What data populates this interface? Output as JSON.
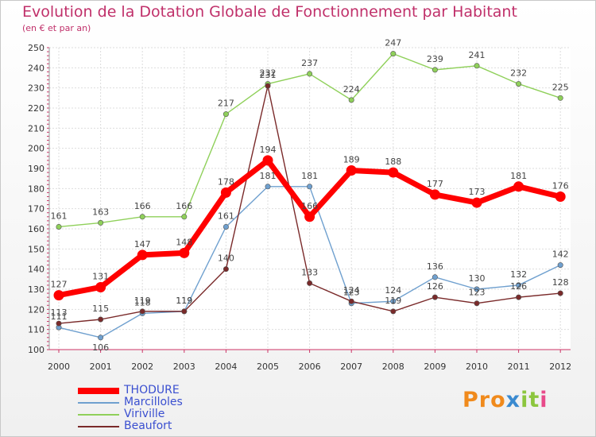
{
  "chart_data": {
    "type": "line",
    "title": "Evolution de la Dotation Globale de Fonctionnement par Habitant",
    "subtitle": "(en € et par an)",
    "xlabel": "",
    "ylabel": "",
    "x": [
      "2000",
      "2001",
      "2002",
      "2003",
      "2004",
      "2005",
      "2006",
      "2007",
      "2008",
      "2009",
      "2010",
      "2011",
      "2012"
    ],
    "ylim": [
      100,
      250
    ],
    "yticks": [
      100,
      110,
      120,
      130,
      140,
      150,
      160,
      170,
      180,
      190,
      200,
      210,
      220,
      230,
      240,
      250
    ],
    "grid": true,
    "legend_position": "bottom-left",
    "series": [
      {
        "name": "THODURE",
        "color": "#ff0000",
        "values": [
          127,
          131,
          147,
          148,
          178,
          194,
          166,
          189,
          188,
          177,
          173,
          181,
          176
        ]
      },
      {
        "name": "Marcilloles",
        "color": "#6fa0cf",
        "values": [
          111,
          106,
          118,
          119,
          161,
          181,
          181,
          123,
          124,
          136,
          130,
          132,
          142
        ]
      },
      {
        "name": "Viriville",
        "color": "#8fd05a",
        "values": [
          161,
          163,
          166,
          166,
          217,
          232,
          237,
          224,
          247,
          239,
          241,
          232,
          225
        ]
      },
      {
        "name": "Beaufort",
        "color": "#7a2a2a",
        "values": [
          113,
          115,
          119,
          119,
          140,
          231,
          133,
          124,
          119,
          126,
          123,
          126,
          128
        ]
      }
    ]
  },
  "logo": {
    "text": "Proxiti",
    "p1": "Pro",
    "p2": "x",
    "p3": "it",
    "p4": "i"
  }
}
